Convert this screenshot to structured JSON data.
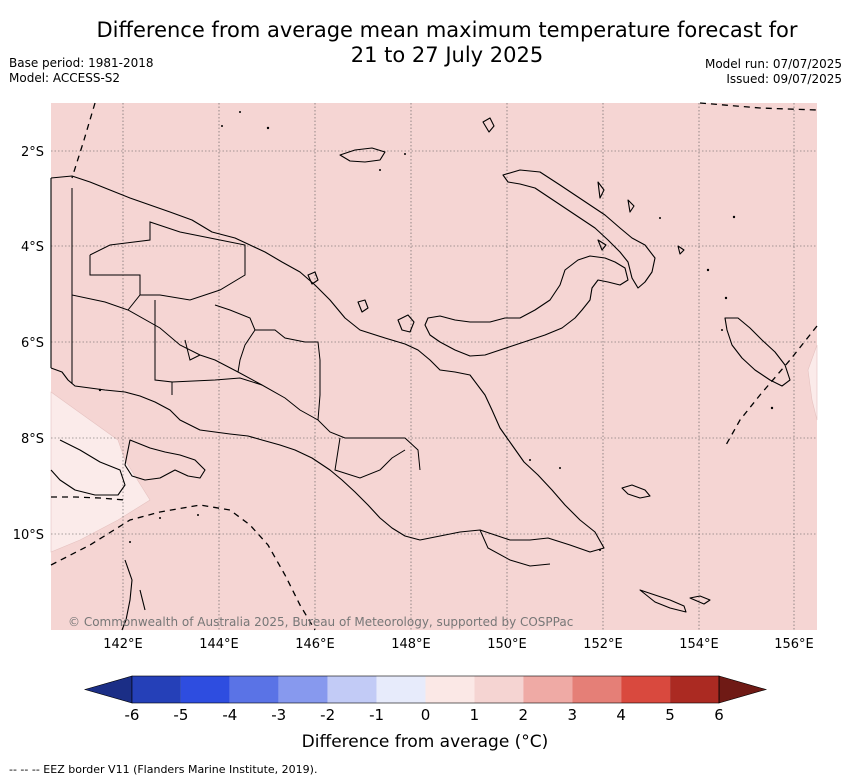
{
  "title_line1": "Difference from average mean maximum temperature forecast for",
  "title_line2": "21 to 27 July 2025",
  "base_period": "Base period: 1981-2018",
  "model": "Model: ACCESS-S2",
  "model_run": "Model run: 07/07/2025",
  "issued": "Issued: 09/07/2025",
  "lat_labels": [
    "2°S",
    "4°S",
    "6°S",
    "8°S",
    "10°S"
  ],
  "lon_labels": [
    "142°E",
    "144°E",
    "146°E",
    "148°E",
    "150°E",
    "152°E",
    "154°E",
    "156°E"
  ],
  "copyright": "© Commonwealth of Australia 2025, Bureau of Meteorology, supported by COSPPac",
  "colorbar": {
    "ticks": [
      "-6",
      "-5",
      "-4",
      "-3",
      "-2",
      "-1",
      "0",
      "1",
      "2",
      "3",
      "4",
      "5",
      "6"
    ],
    "colors": [
      "#2540b8",
      "#2e4de0",
      "#5a73e6",
      "#8799ee",
      "#c2cbf6",
      "#e7ebfb",
      "#fbe8e6",
      "#f5d4d2",
      "#efaaa5",
      "#e57f77",
      "#d9493e",
      "#ab2a22"
    ],
    "under_color": "#1b2e86",
    "over_color": "#6f1a15",
    "label": "Difference from average (°C)"
  },
  "map_colors": {
    "main_fill": "#f5d5d3",
    "light_fill": "#fbebea"
  },
  "legend_note": "--  --  -- EEZ border V11 (Flanders Marine Institute, 2019)."
}
